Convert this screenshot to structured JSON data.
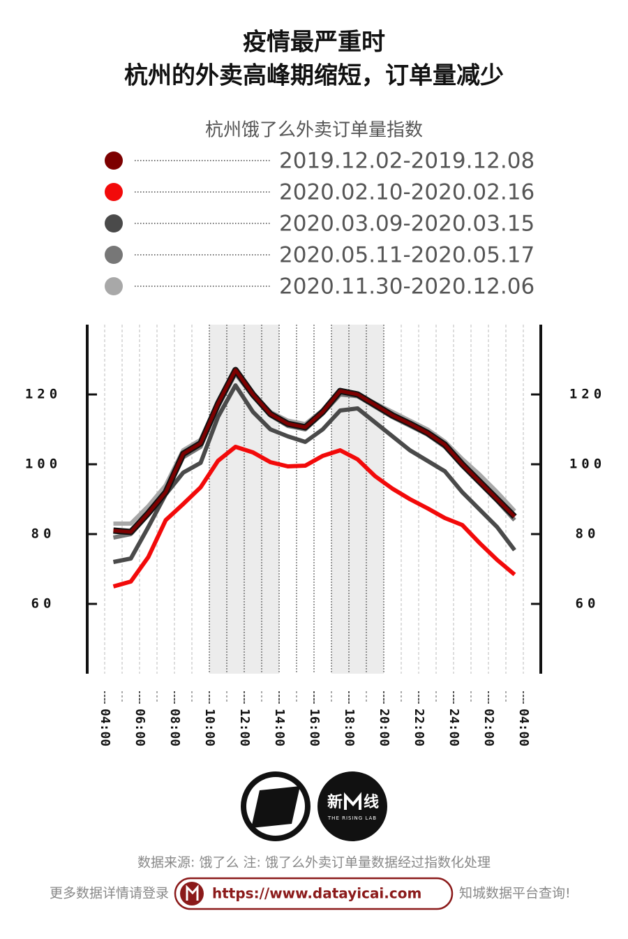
{
  "chart_data": {
    "type": "line",
    "title": "疫情最严重时",
    "title2": "杭州的外卖高峰期缩短，订单量减少",
    "subtitle": "杭州饿了么外卖订单量指数",
    "x": [
      4.5,
      5.5,
      6.5,
      7.5,
      8.5,
      9.5,
      10.5,
      11.5,
      12.5,
      13.5,
      14.5,
      15.5,
      16.5,
      17.5,
      18.5,
      19.5,
      20.5,
      21.5,
      22.5,
      23.5,
      24.5,
      25.5,
      26.5,
      27.5
    ],
    "series": [
      {
        "name": "2019.12.02-2019.12.08",
        "color": "#7d0000",
        "values": [
          81,
          80.6,
          86,
          92,
          103,
          106,
          117.4,
          127,
          120,
          114.4,
          111.6,
          110.6,
          115,
          121,
          120,
          117,
          114,
          111.6,
          109,
          105.6,
          100,
          95,
          90,
          85
        ]
      },
      {
        "name": "2020.02.10-2020.02.16",
        "color": "#f20a0a",
        "values": [
          65,
          66.4,
          73.4,
          84,
          88.6,
          93.4,
          101,
          105,
          103.4,
          100.6,
          99.4,
          99.6,
          102.4,
          104,
          101.4,
          96.6,
          93,
          90,
          87.4,
          84.6,
          82.6,
          77.4,
          72.6,
          68.4
        ]
      },
      {
        "name": "2020.03.09-2020.03.15",
        "color": "#4a4a4a",
        "values": [
          72,
          73,
          82,
          91.4,
          97.6,
          100.4,
          113.6,
          122.6,
          115,
          110,
          108,
          106.4,
          110,
          115.4,
          116,
          112,
          108,
          104,
          101,
          98,
          92,
          87,
          82,
          75.4
        ]
      },
      {
        "name": "2020.05.11-2020.05.17",
        "color": "#777777",
        "values": [
          79,
          80,
          85.5,
          91.5,
          102,
          105,
          116.5,
          126,
          119.5,
          114,
          111,
          110,
          114.5,
          120,
          119.5,
          116.5,
          113.5,
          111,
          108.5,
          105,
          99.5,
          94.5,
          89.5,
          84
        ]
      },
      {
        "name": "2020.11.30-2020.12.06",
        "color": "#a8a8a8",
        "values": [
          83,
          83,
          88,
          94,
          104,
          107,
          118,
          126.5,
          120,
          115,
          112.5,
          111.5,
          115.5,
          120.5,
          120,
          117.5,
          115,
          112.5,
          110,
          106.5,
          101.5,
          97,
          92,
          86.6
        ]
      }
    ],
    "ylim": [
      40,
      140
    ],
    "yticks": [
      60,
      80,
      100,
      120
    ],
    "xlim": [
      3,
      29
    ],
    "xticks": [
      {
        "value": 4,
        "label": "04:00"
      },
      {
        "value": 6,
        "label": "06:00"
      },
      {
        "value": 8,
        "label": "08:00"
      },
      {
        "value": 10,
        "label": "10:00"
      },
      {
        "value": 12,
        "label": "12:00"
      },
      {
        "value": 14,
        "label": "14:00"
      },
      {
        "value": 16,
        "label": "16:00"
      },
      {
        "value": 18,
        "label": "18:00"
      },
      {
        "value": 20,
        "label": "20:00"
      },
      {
        "value": 22,
        "label": "22:00"
      },
      {
        "value": 24,
        "label": "24:00"
      },
      {
        "value": 26,
        "label": "02:00"
      },
      {
        "value": 28,
        "label": "04:00"
      }
    ],
    "highlights": [
      [
        10,
        14
      ],
      [
        17,
        20
      ]
    ],
    "grid": true
  },
  "footer": {
    "logo_left": "新",
    "logo_right": "线",
    "logo_tagline": "THE RISING LAB",
    "source": "数据来源: 饿了么  注: 饿了么外卖订单量数据经过指数化处理",
    "prompt": "更多数据详情请登录",
    "url": "https://www.datayicai.com",
    "suffix": "知城数据平台查询!"
  }
}
